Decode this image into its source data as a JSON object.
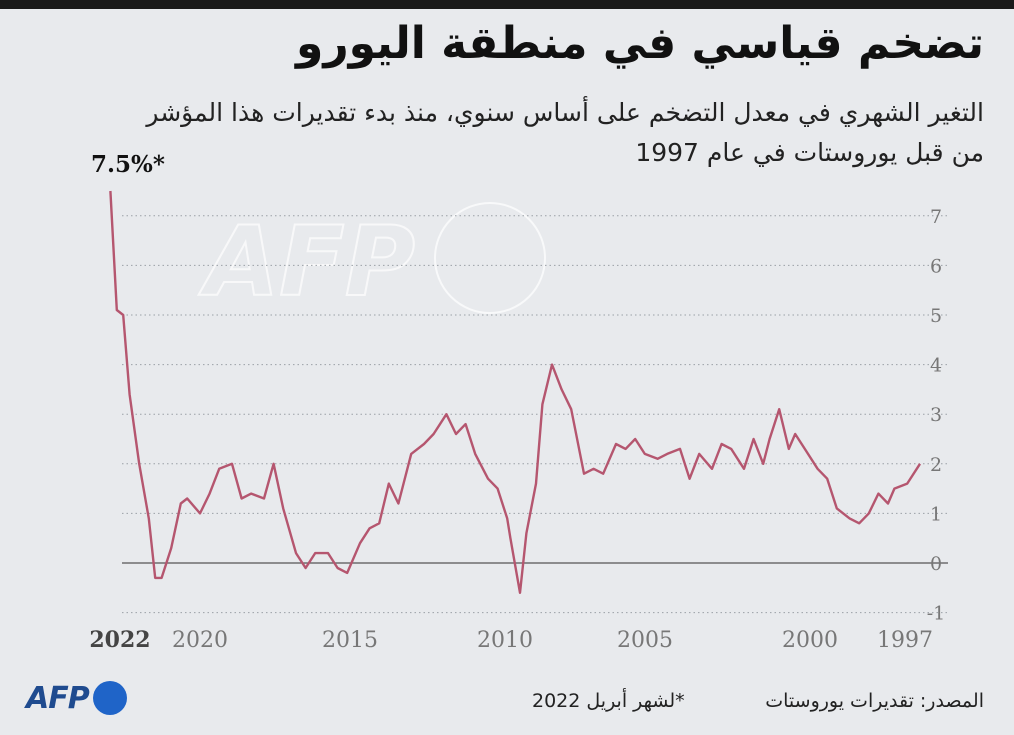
{
  "chart_data": {
    "type": "line",
    "title": "تضخم قياسي في منطقة اليورو",
    "subtitle_line1": "التغير الشهري في معدل التضخم على أساس سنوي، منذ بدء تقديرات هذا المؤشر",
    "subtitle_line2": "من قبل يوروستات في عام 1997",
    "y_ticks": [
      "7",
      "6",
      "5",
      "4",
      "3",
      "2",
      "1",
      "0",
      "-1"
    ],
    "ylim": [
      -1,
      7.5
    ],
    "x_tick_labels": [
      "1997",
      "2000",
      "2005",
      "2010",
      "2015",
      "2020",
      "2022"
    ],
    "x_axis_direction": "right-to-left",
    "peak_annotation": "7.5%*",
    "grid": "dotted horizontal",
    "line_color": "#b5566f",
    "series": [
      {
        "points": [
          [
            1997.0,
            2.0
          ],
          [
            1997.4,
            1.6
          ],
          [
            1997.8,
            1.5
          ],
          [
            1998.0,
            1.2
          ],
          [
            1998.3,
            1.4
          ],
          [
            1998.6,
            1.0
          ],
          [
            1998.9,
            0.8
          ],
          [
            1999.2,
            0.9
          ],
          [
            1999.6,
            1.1
          ],
          [
            1999.9,
            1.7
          ],
          [
            2000.2,
            1.9
          ],
          [
            2000.6,
            2.3
          ],
          [
            2000.9,
            2.6
          ],
          [
            2001.1,
            2.3
          ],
          [
            2001.4,
            3.1
          ],
          [
            2001.7,
            2.5
          ],
          [
            2001.9,
            2.0
          ],
          [
            2002.2,
            2.5
          ],
          [
            2002.5,
            1.9
          ],
          [
            2002.9,
            2.3
          ],
          [
            2003.2,
            2.4
          ],
          [
            2003.5,
            1.9
          ],
          [
            2003.9,
            2.2
          ],
          [
            2004.2,
            1.7
          ],
          [
            2004.5,
            2.3
          ],
          [
            2004.9,
            2.2
          ],
          [
            2005.2,
            2.1
          ],
          [
            2005.6,
            2.2
          ],
          [
            2005.9,
            2.5
          ],
          [
            2006.2,
            2.3
          ],
          [
            2006.5,
            2.4
          ],
          [
            2006.9,
            1.8
          ],
          [
            2007.2,
            1.9
          ],
          [
            2007.5,
            1.8
          ],
          [
            2007.9,
            3.1
          ],
          [
            2008.2,
            3.5
          ],
          [
            2008.5,
            4.0
          ],
          [
            2008.8,
            3.2
          ],
          [
            2009.0,
            1.6
          ],
          [
            2009.3,
            0.6
          ],
          [
            2009.5,
            -0.6
          ],
          [
            2009.8,
            0.5
          ],
          [
            2009.9,
            0.9
          ],
          [
            2010.2,
            1.5
          ],
          [
            2010.5,
            1.7
          ],
          [
            2010.9,
            2.2
          ],
          [
            2011.2,
            2.8
          ],
          [
            2011.5,
            2.6
          ],
          [
            2011.8,
            3.0
          ],
          [
            2012.2,
            2.6
          ],
          [
            2012.5,
            2.4
          ],
          [
            2012.9,
            2.2
          ],
          [
            2013.3,
            1.2
          ],
          [
            2013.6,
            1.6
          ],
          [
            2013.9,
            0.8
          ],
          [
            2014.2,
            0.7
          ],
          [
            2014.5,
            0.4
          ],
          [
            2014.9,
            -0.2
          ],
          [
            2015.2,
            -0.1
          ],
          [
            2015.5,
            0.2
          ],
          [
            2015.9,
            0.2
          ],
          [
            2016.2,
            -0.1
          ],
          [
            2016.5,
            0.2
          ],
          [
            2016.9,
            1.1
          ],
          [
            2017.2,
            2.0
          ],
          [
            2017.5,
            1.3
          ],
          [
            2017.9,
            1.4
          ],
          [
            2018.2,
            1.3
          ],
          [
            2018.5,
            2.0
          ],
          [
            2018.9,
            1.9
          ],
          [
            2019.2,
            1.4
          ],
          [
            2019.5,
            1.0
          ],
          [
            2019.9,
            1.3
          ],
          [
            2020.1,
            1.2
          ],
          [
            2020.4,
            0.3
          ],
          [
            2020.7,
            -0.3
          ],
          [
            2020.9,
            -0.3
          ],
          [
            2021.1,
            0.9
          ],
          [
            2021.4,
            2.0
          ],
          [
            2021.7,
            3.4
          ],
          [
            2021.9,
            5.0
          ],
          [
            2022.1,
            5.1
          ],
          [
            2022.3,
            7.5
          ]
        ]
      }
    ]
  },
  "watermark": "AFP",
  "footer": {
    "logo_text": "AFP",
    "source": "المصدر: تقديرات يوروستات",
    "footnote": "*لشهر أبريل 2022"
  }
}
